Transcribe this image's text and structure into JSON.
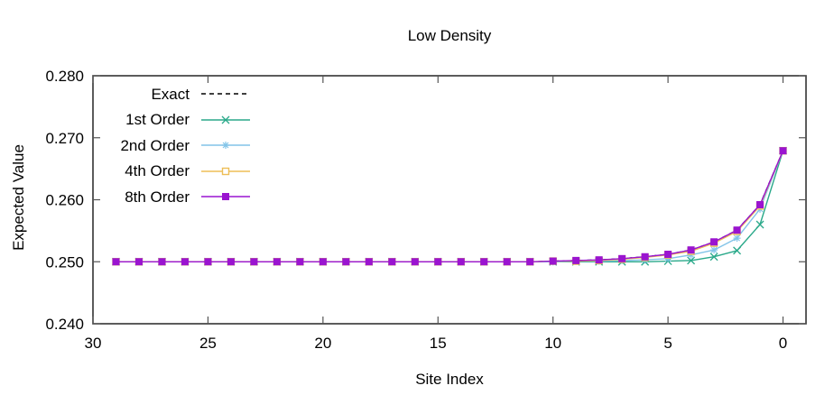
{
  "chart_data": {
    "type": "line",
    "title": "Low Density",
    "xlabel": "Site Index",
    "ylabel": "Expected Value",
    "x_axis_reversed": true,
    "xlim": [
      30,
      -1
    ],
    "ylim": [
      0.24,
      0.28
    ],
    "xticks": [
      30,
      25,
      20,
      15,
      10,
      5,
      0
    ],
    "xtick_labels": [
      "30",
      "25",
      "20",
      "15",
      "10",
      "5",
      "0"
    ],
    "yticks": [
      0.24,
      0.25,
      0.26,
      0.27,
      0.28
    ],
    "ytick_labels": [
      "0.240",
      "0.250",
      "0.260",
      "0.270",
      "0.280"
    ],
    "grid": false,
    "legend_position": "top-left-inside",
    "x": [
      29,
      28,
      27,
      26,
      25,
      24,
      23,
      22,
      21,
      20,
      19,
      18,
      17,
      16,
      15,
      14,
      13,
      12,
      11,
      10,
      9,
      8,
      7,
      6,
      5,
      4,
      3,
      2,
      1,
      0
    ],
    "series": [
      {
        "name": "Exact",
        "color": "#000000",
        "dash": "5,4",
        "marker": "none",
        "values": [
          0.25,
          0.25,
          0.25,
          0.25,
          0.25,
          0.25,
          0.25,
          0.25,
          0.25,
          0.25,
          0.25,
          0.25,
          0.25,
          0.25,
          0.25,
          0.25,
          0.25,
          0.25,
          0.25,
          0.2501,
          0.2502,
          0.2503,
          0.2505,
          0.2508,
          0.2512,
          0.2519,
          0.2532,
          0.2551,
          0.2592,
          0.2679
        ]
      },
      {
        "name": "1st Order",
        "color": "#2aa98a",
        "dash": "",
        "marker": "x",
        "values": [
          0.25,
          0.25,
          0.25,
          0.25,
          0.25,
          0.25,
          0.25,
          0.25,
          0.25,
          0.25,
          0.25,
          0.25,
          0.25,
          0.25,
          0.25,
          0.25,
          0.25,
          0.25,
          0.25,
          0.25,
          0.25,
          0.25,
          0.25,
          0.25,
          0.2501,
          0.2502,
          0.2508,
          0.2518,
          0.256,
          0.2679
        ]
      },
      {
        "name": "2nd Order",
        "color": "#82c4e8",
        "dash": "",
        "marker": "asterisk",
        "values": [
          0.25,
          0.25,
          0.25,
          0.25,
          0.25,
          0.25,
          0.25,
          0.25,
          0.25,
          0.25,
          0.25,
          0.25,
          0.25,
          0.25,
          0.25,
          0.25,
          0.25,
          0.25,
          0.25,
          0.25,
          0.2501,
          0.2501,
          0.2502,
          0.2503,
          0.2505,
          0.2511,
          0.2519,
          0.2538,
          0.2585,
          0.2679
        ]
      },
      {
        "name": "4th Order",
        "color": "#edbe57",
        "dash": "",
        "marker": "open-square",
        "values": [
          0.25,
          0.25,
          0.25,
          0.25,
          0.25,
          0.25,
          0.25,
          0.25,
          0.25,
          0.25,
          0.25,
          0.25,
          0.25,
          0.25,
          0.25,
          0.25,
          0.25,
          0.25,
          0.25,
          0.2501,
          0.2501,
          0.2502,
          0.2504,
          0.2507,
          0.2511,
          0.2517,
          0.253,
          0.2549,
          0.259,
          0.2679
        ]
      },
      {
        "name": "8th Order",
        "color": "#9a14d0",
        "dash": "",
        "marker": "filled-square",
        "values": [
          0.25,
          0.25,
          0.25,
          0.25,
          0.25,
          0.25,
          0.25,
          0.25,
          0.25,
          0.25,
          0.25,
          0.25,
          0.25,
          0.25,
          0.25,
          0.25,
          0.25,
          0.25,
          0.25,
          0.2501,
          0.2502,
          0.2503,
          0.2505,
          0.2508,
          0.2512,
          0.2519,
          0.2532,
          0.2551,
          0.2592,
          0.2679
        ]
      }
    ]
  }
}
